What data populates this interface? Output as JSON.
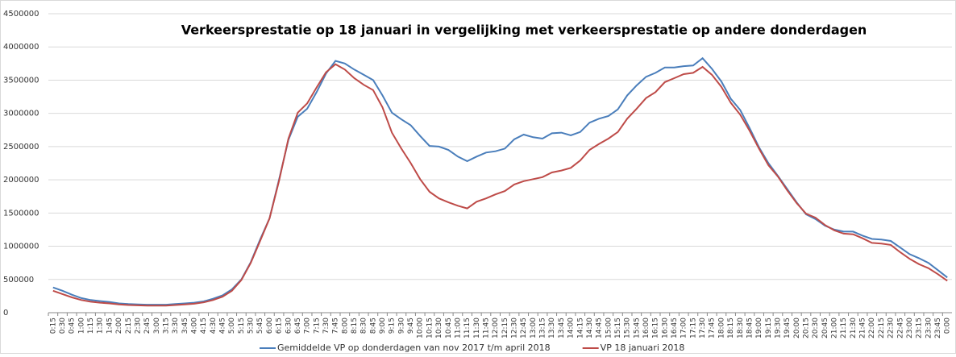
{
  "chart_data": {
    "type": "line",
    "title": "Verkeersprestatie op 18 januari in vergelijking met verkeersprestatie op andere donderdagen",
    "categories": [
      "0:15",
      "0:30",
      "0:45",
      "1:00",
      "1:15",
      "1:30",
      "1:45",
      "2:00",
      "2:15",
      "2:30",
      "2:45",
      "3:00",
      "3:15",
      "3:30",
      "3:45",
      "4:00",
      "4:15",
      "4:30",
      "4:45",
      "5:00",
      "5:15",
      "5:30",
      "5:45",
      "6:00",
      "6:15",
      "6:30",
      "6:45",
      "7:00",
      "7:15",
      "7:30",
      "7:45",
      "8:00",
      "8:15",
      "8:30",
      "8:45",
      "9:00",
      "9:15",
      "9:30",
      "9:45",
      "10:00",
      "10:15",
      "10:30",
      "10:45",
      "11:00",
      "11:15",
      "11:30",
      "11:45",
      "12:00",
      "12:15",
      "12:30",
      "12:45",
      "13:00",
      "13:15",
      "13:30",
      "13:45",
      "14:00",
      "14:15",
      "14:30",
      "14:45",
      "15:00",
      "15:15",
      "15:30",
      "15:45",
      "16:00",
      "16:15",
      "16:30",
      "16:45",
      "17:00",
      "17:15",
      "17:30",
      "17:45",
      "18:00",
      "18:15",
      "18:30",
      "18:45",
      "19:00",
      "19:15",
      "19:30",
      "19:45",
      "20:00",
      "20:15",
      "20:30",
      "20:45",
      "21:00",
      "21:15",
      "21:30",
      "21:45",
      "22:00",
      "22:15",
      "22:30",
      "22:45",
      "23:00",
      "23:15",
      "23:30",
      "23:45",
      "0:00"
    ],
    "series": [
      {
        "name": "Gemiddelde VP op donderdagen van nov 2017 t/m april 2018",
        "color": "#4a7ebb",
        "values": [
          380000,
          330000,
          270000,
          220000,
          190000,
          175000,
          160000,
          140000,
          130000,
          125000,
          120000,
          120000,
          120000,
          130000,
          140000,
          150000,
          170000,
          210000,
          260000,
          350000,
          500000,
          760000,
          1100000,
          1420000,
          2000000,
          2600000,
          2950000,
          3070000,
          3320000,
          3600000,
          3790000,
          3750000,
          3660000,
          3580000,
          3500000,
          3270000,
          3010000,
          2910000,
          2820000,
          2660000,
          2510000,
          2500000,
          2450000,
          2350000,
          2280000,
          2350000,
          2410000,
          2430000,
          2470000,
          2610000,
          2680000,
          2640000,
          2620000,
          2700000,
          2710000,
          2670000,
          2720000,
          2860000,
          2920000,
          2960000,
          3060000,
          3270000,
          3420000,
          3550000,
          3610000,
          3690000,
          3690000,
          3710000,
          3720000,
          3830000,
          3670000,
          3480000,
          3220000,
          3050000,
          2780000,
          2490000,
          2250000,
          2060000,
          1860000,
          1660000,
          1480000,
          1410000,
          1310000,
          1250000,
          1220000,
          1220000,
          1160000,
          1110000,
          1100000,
          1080000,
          980000,
          880000,
          820000,
          750000,
          640000,
          530000
        ]
      },
      {
        "name": "VP 18 januari 2018",
        "color": "#be4b48",
        "values": [
          330000,
          280000,
          230000,
          190000,
          165000,
          150000,
          140000,
          125000,
          115000,
          110000,
          105000,
          105000,
          105000,
          115000,
          125000,
          135000,
          155000,
          190000,
          240000,
          330000,
          490000,
          750000,
          1080000,
          1420000,
          1980000,
          2620000,
          3010000,
          3150000,
          3390000,
          3620000,
          3740000,
          3660000,
          3530000,
          3430000,
          3350000,
          3090000,
          2710000,
          2470000,
          2250000,
          2010000,
          1820000,
          1720000,
          1660000,
          1610000,
          1570000,
          1670000,
          1720000,
          1780000,
          1830000,
          1930000,
          1980000,
          2010000,
          2040000,
          2110000,
          2140000,
          2180000,
          2290000,
          2450000,
          2540000,
          2620000,
          2720000,
          2920000,
          3070000,
          3230000,
          3320000,
          3470000,
          3530000,
          3590000,
          3610000,
          3700000,
          3580000,
          3400000,
          3160000,
          2980000,
          2740000,
          2470000,
          2220000,
          2050000,
          1840000,
          1650000,
          1490000,
          1430000,
          1320000,
          1240000,
          1190000,
          1180000,
          1120000,
          1050000,
          1040000,
          1020000,
          910000,
          810000,
          730000,
          670000,
          580000,
          480000
        ]
      }
    ],
    "ylim": [
      0,
      4500000
    ],
    "yticks": [
      0,
      500000,
      1000000,
      1500000,
      2000000,
      2500000,
      3000000,
      3500000,
      4000000,
      4500000
    ],
    "grid": true,
    "legend": "bottom"
  }
}
